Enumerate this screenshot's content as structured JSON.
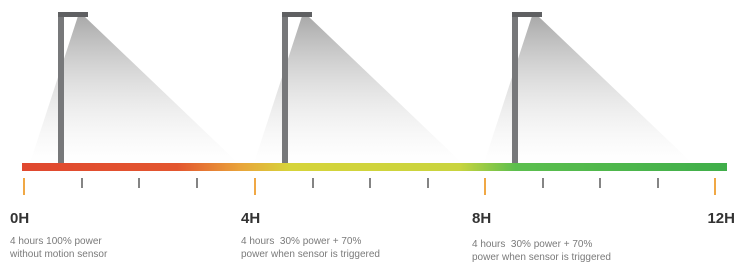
{
  "markers": [
    {
      "label": "0H",
      "caption": [
        "4 hours 100% power",
        "without motion sensor"
      ]
    },
    {
      "label": "4H",
      "caption": [
        "4 hours  30% power + 70%",
        "power when sensor is triggered"
      ]
    },
    {
      "label": "8H",
      "caption": [
        "4 hours  30% power + 70%",
        "power when sensor is triggered"
      ]
    },
    {
      "label": "12H"
    }
  ]
}
